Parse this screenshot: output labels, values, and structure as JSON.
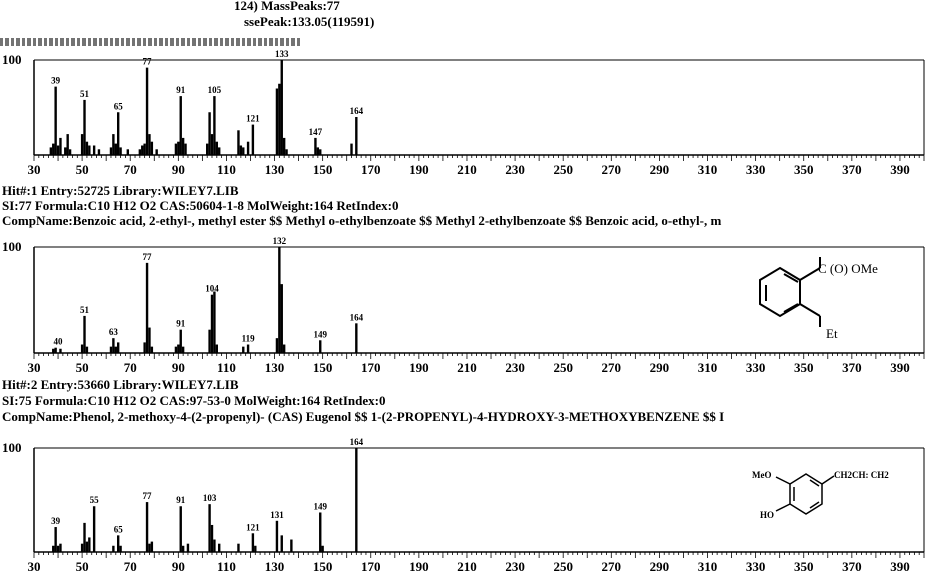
{
  "top_header": {
    "line1": "124) MassPeaks:77",
    "line2": "ssePeak:133.05(119591)"
  },
  "hits": [
    {
      "line1": "Hit#:1  Entry:52725  Library:WILEY7.LIB",
      "line2": "SI:77  Formula:C10 H12 O2  CAS:50604-1-8  MolWeight:164  RetIndex:0",
      "line3": "CompName:Benzoic acid, 2-ethyl-, methyl ester $$ Methyl o-ethylbenzoate $$ Methyl 2-ethylbenzoate $$ Benzoic acid, o-ethyl-, m"
    },
    {
      "line1": "Hit#:2  Entry:53660  Library:WILEY7.LIB",
      "line2": "SI:75  Formula:C10 H12 O2  CAS:97-53-0  MolWeight:164  RetIndex:0",
      "line3": "CompName:Phenol, 2-methoxy-4-(2-propenyl)- (CAS) Eugenol $$ 1-(2-PROPENYL)-4-HYDROXY-3-METHOXYBENZENE $$ I"
    }
  ],
  "structures": {
    "hit1": {
      "substituent_top": "C (O) OMe",
      "substituent_bottom": "Et"
    },
    "hit2": {
      "group_methoxy": "MeO",
      "group_hydroxy": "HO",
      "group_allyl": "CH2CH: CH2"
    }
  },
  "chart_data": [
    {
      "type": "bar",
      "ylabel_top": "100",
      "xlim": [
        30,
        400
      ],
      "x_ticks": [
        30,
        50,
        70,
        90,
        110,
        130,
        150,
        170,
        190,
        210,
        230,
        250,
        270,
        290,
        310,
        330,
        350,
        370,
        390
      ],
      "peaks": [
        {
          "mz": 37,
          "rel": 8
        },
        {
          "mz": 38,
          "rel": 12
        },
        {
          "mz": 39,
          "rel": 72
        },
        {
          "mz": 40,
          "rel": 10
        },
        {
          "mz": 41,
          "rel": 18
        },
        {
          "mz": 43,
          "rel": 8
        },
        {
          "mz": 44,
          "rel": 22
        },
        {
          "mz": 45,
          "rel": 6
        },
        {
          "mz": 50,
          "rel": 22
        },
        {
          "mz": 51,
          "rel": 58
        },
        {
          "mz": 52,
          "rel": 14
        },
        {
          "mz": 53,
          "rel": 10
        },
        {
          "mz": 55,
          "rel": 10
        },
        {
          "mz": 57,
          "rel": 6
        },
        {
          "mz": 62,
          "rel": 8
        },
        {
          "mz": 63,
          "rel": 22
        },
        {
          "mz": 64,
          "rel": 12
        },
        {
          "mz": 65,
          "rel": 45
        },
        {
          "mz": 66,
          "rel": 8
        },
        {
          "mz": 69,
          "rel": 6
        },
        {
          "mz": 74,
          "rel": 6
        },
        {
          "mz": 75,
          "rel": 10
        },
        {
          "mz": 76,
          "rel": 12
        },
        {
          "mz": 77,
          "rel": 92
        },
        {
          "mz": 78,
          "rel": 22
        },
        {
          "mz": 79,
          "rel": 14
        },
        {
          "mz": 81,
          "rel": 6
        },
        {
          "mz": 89,
          "rel": 12
        },
        {
          "mz": 90,
          "rel": 14
        },
        {
          "mz": 91,
          "rel": 62
        },
        {
          "mz": 92,
          "rel": 18
        },
        {
          "mz": 93,
          "rel": 12
        },
        {
          "mz": 102,
          "rel": 12
        },
        {
          "mz": 103,
          "rel": 45
        },
        {
          "mz": 104,
          "rel": 22
        },
        {
          "mz": 105,
          "rel": 62
        },
        {
          "mz": 106,
          "rel": 14
        },
        {
          "mz": 107,
          "rel": 8
        },
        {
          "mz": 115,
          "rel": 26
        },
        {
          "mz": 116,
          "rel": 10
        },
        {
          "mz": 117,
          "rel": 8
        },
        {
          "mz": 119,
          "rel": 14
        },
        {
          "mz": 121,
          "rel": 32
        },
        {
          "mz": 131,
          "rel": 70
        },
        {
          "mz": 132,
          "rel": 75
        },
        {
          "mz": 133,
          "rel": 100
        },
        {
          "mz": 134,
          "rel": 18
        },
        {
          "mz": 135,
          "rel": 6
        },
        {
          "mz": 147,
          "rel": 18
        },
        {
          "mz": 148,
          "rel": 8
        },
        {
          "mz": 149,
          "rel": 6
        },
        {
          "mz": 162,
          "rel": 12
        },
        {
          "mz": 164,
          "rel": 40
        }
      ],
      "labels": [
        {
          "mz": 39,
          "text": "39"
        },
        {
          "mz": 51,
          "text": "51"
        },
        {
          "mz": 65,
          "text": "65"
        },
        {
          "mz": 77,
          "text": "77"
        },
        {
          "mz": 91,
          "text": "91"
        },
        {
          "mz": 105,
          "text": "105"
        },
        {
          "mz": 121,
          "text": "121"
        },
        {
          "mz": 133,
          "text": "133"
        },
        {
          "mz": 147,
          "text": "147"
        },
        {
          "mz": 164,
          "text": "164"
        }
      ]
    },
    {
      "type": "bar",
      "ylabel_top": "100",
      "xlim": [
        30,
        400
      ],
      "x_ticks": [
        30,
        50,
        70,
        90,
        110,
        130,
        150,
        170,
        190,
        210,
        230,
        250,
        270,
        290,
        310,
        330,
        350,
        370,
        390
      ],
      "peaks": [
        {
          "mz": 38,
          "rel": 4
        },
        {
          "mz": 39,
          "rel": 5
        },
        {
          "mz": 41,
          "rel": 4
        },
        {
          "mz": 50,
          "rel": 8
        },
        {
          "mz": 51,
          "rel": 35
        },
        {
          "mz": 52,
          "rel": 6
        },
        {
          "mz": 62,
          "rel": 6
        },
        {
          "mz": 63,
          "rel": 14
        },
        {
          "mz": 64,
          "rel": 6
        },
        {
          "mz": 65,
          "rel": 10
        },
        {
          "mz": 76,
          "rel": 10
        },
        {
          "mz": 77,
          "rel": 85
        },
        {
          "mz": 78,
          "rel": 24
        },
        {
          "mz": 79,
          "rel": 6
        },
        {
          "mz": 89,
          "rel": 6
        },
        {
          "mz": 90,
          "rel": 8
        },
        {
          "mz": 91,
          "rel": 22
        },
        {
          "mz": 92,
          "rel": 6
        },
        {
          "mz": 103,
          "rel": 22
        },
        {
          "mz": 104,
          "rel": 55
        },
        {
          "mz": 105,
          "rel": 58
        },
        {
          "mz": 106,
          "rel": 8
        },
        {
          "mz": 117,
          "rel": 6
        },
        {
          "mz": 119,
          "rel": 8
        },
        {
          "mz": 131,
          "rel": 14
        },
        {
          "mz": 132,
          "rel": 100
        },
        {
          "mz": 133,
          "rel": 65
        },
        {
          "mz": 134,
          "rel": 8
        },
        {
          "mz": 149,
          "rel": 12
        },
        {
          "mz": 164,
          "rel": 28
        }
      ],
      "labels": [
        {
          "mz": 40,
          "text": "40"
        },
        {
          "mz": 51,
          "text": "51"
        },
        {
          "mz": 63,
          "text": "63"
        },
        {
          "mz": 77,
          "text": "77"
        },
        {
          "mz": 91,
          "text": "91"
        },
        {
          "mz": 104,
          "text": "104"
        },
        {
          "mz": 119,
          "text": "119"
        },
        {
          "mz": 132,
          "text": "132"
        },
        {
          "mz": 149,
          "text": "149"
        },
        {
          "mz": 164,
          "text": "164"
        }
      ]
    },
    {
      "type": "bar",
      "ylabel_top": "100",
      "xlim": [
        30,
        400
      ],
      "x_ticks": [
        30,
        50,
        70,
        90,
        110,
        130,
        150,
        170,
        190,
        210,
        230,
        250,
        270,
        290,
        310,
        330,
        350,
        370,
        390
      ],
      "peaks": [
        {
          "mz": 38,
          "rel": 6
        },
        {
          "mz": 39,
          "rel": 24
        },
        {
          "mz": 40,
          "rel": 6
        },
        {
          "mz": 41,
          "rel": 8
        },
        {
          "mz": 50,
          "rel": 8
        },
        {
          "mz": 51,
          "rel": 28
        },
        {
          "mz": 52,
          "rel": 10
        },
        {
          "mz": 53,
          "rel": 14
        },
        {
          "mz": 55,
          "rel": 44
        },
        {
          "mz": 63,
          "rel": 6
        },
        {
          "mz": 65,
          "rel": 16
        },
        {
          "mz": 66,
          "rel": 6
        },
        {
          "mz": 77,
          "rel": 48
        },
        {
          "mz": 78,
          "rel": 8
        },
        {
          "mz": 79,
          "rel": 10
        },
        {
          "mz": 91,
          "rel": 44
        },
        {
          "mz": 92,
          "rel": 6
        },
        {
          "mz": 94,
          "rel": 8
        },
        {
          "mz": 103,
          "rel": 46
        },
        {
          "mz": 104,
          "rel": 26
        },
        {
          "mz": 105,
          "rel": 12
        },
        {
          "mz": 107,
          "rel": 8
        },
        {
          "mz": 115,
          "rel": 8
        },
        {
          "mz": 121,
          "rel": 18
        },
        {
          "mz": 122,
          "rel": 6
        },
        {
          "mz": 131,
          "rel": 30
        },
        {
          "mz": 133,
          "rel": 16
        },
        {
          "mz": 137,
          "rel": 12
        },
        {
          "mz": 149,
          "rel": 38
        },
        {
          "mz": 150,
          "rel": 6
        },
        {
          "mz": 164,
          "rel": 100
        }
      ],
      "labels": [
        {
          "mz": 39,
          "text": "39"
        },
        {
          "mz": 55,
          "text": "55"
        },
        {
          "mz": 65,
          "text": "65"
        },
        {
          "mz": 77,
          "text": "77"
        },
        {
          "mz": 91,
          "text": "91"
        },
        {
          "mz": 103,
          "text": "103"
        },
        {
          "mz": 121,
          "text": "121"
        },
        {
          "mz": 131,
          "text": "131"
        },
        {
          "mz": 149,
          "text": "149"
        },
        {
          "mz": 164,
          "text": "164"
        }
      ]
    }
  ]
}
